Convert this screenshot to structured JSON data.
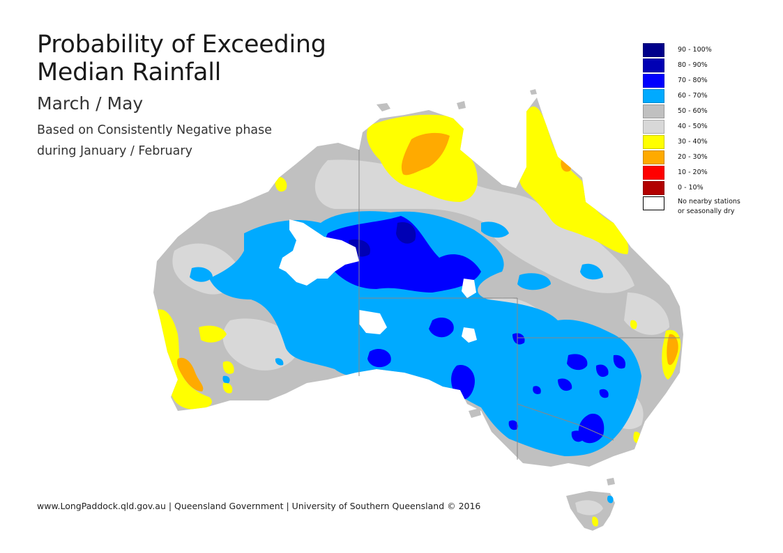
{
  "title": {
    "line1": "Probability of Exceeding",
    "line2": "Median Rainfall",
    "subtitle": "March / May",
    "desc_line1": "Based on Consistently Negative phase",
    "desc_line2": "during January / February"
  },
  "legend": {
    "items": [
      {
        "label": "90 - 100%",
        "color": "#00008b"
      },
      {
        "label": "80 - 90%",
        "color": "#0000b4"
      },
      {
        "label": "70 - 80%",
        "color": "#0000ff"
      },
      {
        "label": "60 - 70%",
        "color": "#00aaff"
      },
      {
        "label": "50 - 60%",
        "color": "#c0c0c0"
      },
      {
        "label": "40 - 50%",
        "color": "#d8d8d8"
      },
      {
        "label": "30 - 40%",
        "color": "#ffff00"
      },
      {
        "label": "20 - 30%",
        "color": "#ffaa00"
      },
      {
        "label": "10 - 20%",
        "color": "#ff0000"
      },
      {
        "label": "0 - 10%",
        "color": "#b20000"
      }
    ],
    "nodata_line1": "No nearby stations",
    "nodata_line2": "or seasonally dry",
    "nodata_color": "#ffffff"
  },
  "footer": "www.LongPaddock.qld.gov.au | Queensland Government | University of Southern Queensland © 2016"
}
